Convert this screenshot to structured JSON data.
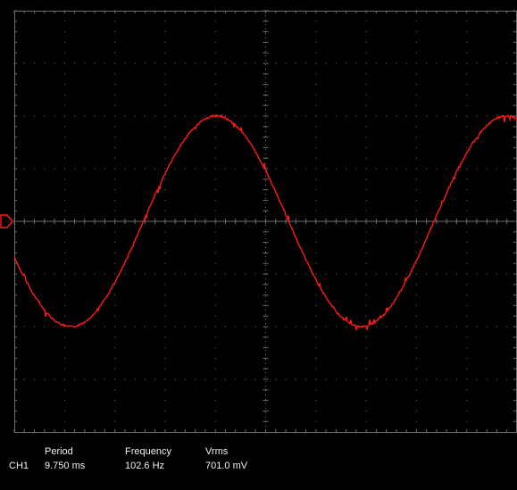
{
  "display": {
    "background_color": "#000000",
    "grid_color": "#6e6e6e",
    "trace_color": "#ff1a1a",
    "trigger_marker_color": "#ff1a1a",
    "divisions_x": 10,
    "divisions_y": 8,
    "trigger_marker_icon": "trigger-marker-icon"
  },
  "waveform": {
    "channel": "CH1",
    "shape": "sine",
    "cycles_visible": 1.73,
    "amplitude_divisions": 2.0,
    "start_phase_deg": 200
  },
  "measurements": {
    "channel_label": "CH1",
    "period": {
      "label": "Period",
      "value": "9.750 ms"
    },
    "frequency": {
      "label": "Frequency",
      "value": "102.6 Hz"
    },
    "vrms": {
      "label": "Vrms",
      "value": "701.0 mV"
    }
  }
}
